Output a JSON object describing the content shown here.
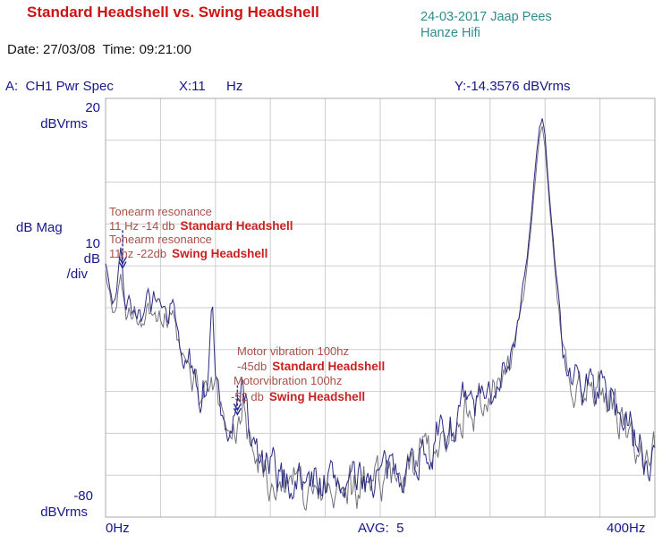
{
  "header": {
    "title": "Standard Headshell vs. Swing Headshell",
    "credit_line1": "24-03-2017 Jaap Pees",
    "credit_line2": "Hanze Hifi",
    "date_time": "Date: 27/03/08  Time: 09:21:00",
    "channel_label": "A:  CH1 Pwr Spec",
    "marker_x_value": "X:11",
    "marker_x_unit": "Hz",
    "marker_y_value": "Y:-14.3576 dBVrms"
  },
  "y_axis": {
    "top_value": "20",
    "top_unit": "dBVrms",
    "mag_label": "dB Mag",
    "div_value": "10",
    "div_unit": "dB",
    "div_suffix": "/div",
    "bottom_value": "-80",
    "bottom_unit": "dBVrms"
  },
  "x_axis": {
    "left_label": "0Hz",
    "avg_label": "AVG:  5",
    "right_label": "400Hz"
  },
  "annotations": {
    "tonearm": {
      "line1": "Tonearm resonance",
      "line2_value": "11 Hz -14 db",
      "line2_name": "Standard Headshell",
      "line3": "Tonearm resonance",
      "line4_value": "11hz -22db",
      "line4_name": "Swing Headshell"
    },
    "motor": {
      "line1": "Motor vibration 100hz",
      "line2_value": "-45db",
      "line2_name": "Standard Headshell",
      "line3": "Motorvibration 100hz",
      "line4_value": "-52 db",
      "line4_name": "Swing Headshell"
    }
  },
  "colors": {
    "title": "#cc1414",
    "credit": "#2e8c8c",
    "axis_text": "#17178c",
    "annotation_text": "#a8524a",
    "annotation_bold": "#c82121"
  },
  "chart_data": {
    "type": "line",
    "title": "Standard Headshell vs. Swing Headshell",
    "xlabel": "Hz",
    "ylabel": "dBVrms",
    "xlim": [
      0,
      400
    ],
    "ylim": [
      -80,
      20
    ],
    "x_divisions": 10,
    "y_divisions": 10,
    "db_per_div": 10,
    "averages": 5,
    "grid": true,
    "grid_color": "#cdcdcd",
    "border_color": "#ababab",
    "marker_color": "#2a2a8c",
    "notable_points": [
      {
        "label": "Tonearm resonance Standard Headshell",
        "hz": 11,
        "db": -14.3576
      },
      {
        "label": "Tonearm resonance Swing Headshell",
        "hz": 11,
        "db": -22
      },
      {
        "label": "Motor vibration Standard Headshell",
        "hz": 100,
        "db": -45
      },
      {
        "label": "Motor vibration Swing Headshell",
        "hz": 100,
        "db": -52
      },
      {
        "label": "Large peak",
        "hz": 320,
        "db": 15.5
      }
    ],
    "markers": [
      {
        "hz": 12.4,
        "db_from": -11.5,
        "db_to": -20.5
      },
      {
        "hz": 96.0,
        "db_from": -48.5,
        "db_to": -55.5
      }
    ],
    "series": [
      {
        "name": "Standard Headshell",
        "color": "#2b2b80",
        "seed": 7,
        "noise_db": 4.2,
        "keypoints": [
          [
            0,
            -19
          ],
          [
            2,
            -23
          ],
          [
            4,
            -27
          ],
          [
            6,
            -29
          ],
          [
            8,
            -25
          ],
          [
            10,
            -18
          ],
          [
            11,
            -15
          ],
          [
            12,
            -18
          ],
          [
            13,
            -25
          ],
          [
            15,
            -30
          ],
          [
            17,
            -28
          ],
          [
            19,
            -31
          ],
          [
            21,
            -29
          ],
          [
            23,
            -32
          ],
          [
            25,
            -30
          ],
          [
            27,
            -33
          ],
          [
            29,
            -28
          ],
          [
            31,
            -26
          ],
          [
            33,
            -30
          ],
          [
            35,
            -28
          ],
          [
            37,
            -31
          ],
          [
            39,
            -29
          ],
          [
            41,
            -32
          ],
          [
            43,
            -30
          ],
          [
            45,
            -33
          ],
          [
            47,
            -30
          ],
          [
            49,
            -29
          ],
          [
            51,
            -33
          ],
          [
            53,
            -37
          ],
          [
            55,
            -40
          ],
          [
            57,
            -42
          ],
          [
            59,
            -45
          ],
          [
            61,
            -43
          ],
          [
            63,
            -46
          ],
          [
            65,
            -44
          ],
          [
            67,
            -48
          ],
          [
            69,
            -50
          ],
          [
            71,
            -47
          ],
          [
            73,
            -50
          ],
          [
            75,
            -46
          ],
          [
            77,
            -33
          ],
          [
            78,
            -31
          ],
          [
            79,
            -40
          ],
          [
            81,
            -48
          ],
          [
            83,
            -52
          ],
          [
            85,
            -55
          ],
          [
            87,
            -57
          ],
          [
            89,
            -60
          ],
          [
            91,
            -62
          ],
          [
            93,
            -60
          ],
          [
            95,
            -57
          ],
          [
            97,
            -52
          ],
          [
            99,
            -47
          ],
          [
            100,
            -46
          ],
          [
            101,
            -49
          ],
          [
            103,
            -56
          ],
          [
            105,
            -60
          ],
          [
            107,
            -63
          ],
          [
            110,
            -65
          ],
          [
            113,
            -67
          ],
          [
            116,
            -68
          ],
          [
            120,
            -69
          ],
          [
            125,
            -70
          ],
          [
            130,
            -71
          ],
          [
            136,
            -72
          ],
          [
            142,
            -71
          ],
          [
            148,
            -72
          ],
          [
            154,
            -70
          ],
          [
            160,
            -72
          ],
          [
            166,
            -71
          ],
          [
            172,
            -72
          ],
          [
            178,
            -71
          ],
          [
            184,
            -72
          ],
          [
            190,
            -70
          ],
          [
            196,
            -71
          ],
          [
            202,
            -69
          ],
          [
            208,
            -70
          ],
          [
            214,
            -68
          ],
          [
            220,
            -67
          ],
          [
            226,
            -66
          ],
          [
            232,
            -64
          ],
          [
            238,
            -63
          ],
          [
            244,
            -61
          ],
          [
            250,
            -59
          ],
          [
            255,
            -57
          ],
          [
            260,
            -54
          ],
          [
            264,
            -52
          ],
          [
            268,
            -55
          ],
          [
            272,
            -51
          ],
          [
            276,
            -54
          ],
          [
            280,
            -50
          ],
          [
            284,
            -48
          ],
          [
            288,
            -45
          ],
          [
            292,
            -43
          ],
          [
            296,
            -40
          ],
          [
            300,
            -34
          ],
          [
            304,
            -26
          ],
          [
            307,
            -18
          ],
          [
            310,
            -8
          ],
          [
            313,
            4
          ],
          [
            316,
            13
          ],
          [
            318,
            15.5
          ],
          [
            320,
            11
          ],
          [
            322,
            2
          ],
          [
            325,
            -10
          ],
          [
            328,
            -22
          ],
          [
            331,
            -33
          ],
          [
            334,
            -41
          ],
          [
            337,
            -46
          ],
          [
            340,
            -49
          ],
          [
            344,
            -46
          ],
          [
            348,
            -50
          ],
          [
            352,
            -45
          ],
          [
            356,
            -49
          ],
          [
            360,
            -47
          ],
          [
            364,
            -52
          ],
          [
            368,
            -49
          ],
          [
            372,
            -53
          ],
          [
            376,
            -56
          ],
          [
            380,
            -58
          ],
          [
            384,
            -61
          ],
          [
            388,
            -63
          ],
          [
            392,
            -66
          ],
          [
            395,
            -68
          ],
          [
            397,
            -66
          ],
          [
            399,
            -62
          ]
        ]
      },
      {
        "name": "Swing Headshell",
        "color": "#72727e",
        "seed": 21,
        "noise_db": 4.2,
        "keypoints": [
          [
            0,
            -21
          ],
          [
            2,
            -25
          ],
          [
            4,
            -29
          ],
          [
            6,
            -31
          ],
          [
            8,
            -28
          ],
          [
            10,
            -24
          ],
          [
            11,
            -22
          ],
          [
            12,
            -24
          ],
          [
            13,
            -28
          ],
          [
            15,
            -32
          ],
          [
            17,
            -30
          ],
          [
            19,
            -33
          ],
          [
            21,
            -31
          ],
          [
            23,
            -34
          ],
          [
            25,
            -32
          ],
          [
            27,
            -34
          ],
          [
            29,
            -30
          ],
          [
            31,
            -28
          ],
          [
            33,
            -32
          ],
          [
            35,
            -30
          ],
          [
            37,
            -33
          ],
          [
            39,
            -31
          ],
          [
            41,
            -34
          ],
          [
            43,
            -32
          ],
          [
            45,
            -34
          ],
          [
            47,
            -32
          ],
          [
            49,
            -31
          ],
          [
            51,
            -35
          ],
          [
            53,
            -39
          ],
          [
            55,
            -42
          ],
          [
            57,
            -44
          ],
          [
            59,
            -46
          ],
          [
            61,
            -45
          ],
          [
            63,
            -48
          ],
          [
            65,
            -46
          ],
          [
            67,
            -50
          ],
          [
            69,
            -52
          ],
          [
            71,
            -49
          ],
          [
            73,
            -52
          ],
          [
            75,
            -50
          ],
          [
            77,
            -46
          ],
          [
            79,
            -48
          ],
          [
            81,
            -51
          ],
          [
            83,
            -54
          ],
          [
            85,
            -57
          ],
          [
            87,
            -59
          ],
          [
            89,
            -62
          ],
          [
            91,
            -63
          ],
          [
            93,
            -61
          ],
          [
            95,
            -59
          ],
          [
            97,
            -56
          ],
          [
            99,
            -54
          ],
          [
            100,
            -53
          ],
          [
            101,
            -55
          ],
          [
            103,
            -59
          ],
          [
            105,
            -62
          ],
          [
            107,
            -64
          ],
          [
            110,
            -66
          ],
          [
            113,
            -68
          ],
          [
            116,
            -69
          ],
          [
            120,
            -70
          ],
          [
            125,
            -71
          ],
          [
            130,
            -72
          ],
          [
            136,
            -73
          ],
          [
            142,
            -72
          ],
          [
            148,
            -73
          ],
          [
            154,
            -71
          ],
          [
            160,
            -73
          ],
          [
            166,
            -72
          ],
          [
            172,
            -73
          ],
          [
            178,
            -72
          ],
          [
            184,
            -73
          ],
          [
            190,
            -71
          ],
          [
            196,
            -72
          ],
          [
            202,
            -70
          ],
          [
            208,
            -71
          ],
          [
            214,
            -69
          ],
          [
            220,
            -68
          ],
          [
            226,
            -67
          ],
          [
            232,
            -65
          ],
          [
            238,
            -64
          ],
          [
            244,
            -62
          ],
          [
            250,
            -60
          ],
          [
            255,
            -58
          ],
          [
            260,
            -56
          ],
          [
            264,
            -54
          ],
          [
            268,
            -56
          ],
          [
            272,
            -53
          ],
          [
            276,
            -55
          ],
          [
            280,
            -52
          ],
          [
            284,
            -50
          ],
          [
            288,
            -47
          ],
          [
            292,
            -45
          ],
          [
            296,
            -42
          ],
          [
            300,
            -36
          ],
          [
            304,
            -28
          ],
          [
            307,
            -20
          ],
          [
            310,
            -10
          ],
          [
            313,
            1
          ],
          [
            316,
            11
          ],
          [
            318,
            13.5
          ],
          [
            320,
            9
          ],
          [
            322,
            0
          ],
          [
            325,
            -12
          ],
          [
            328,
            -24
          ],
          [
            331,
            -35
          ],
          [
            334,
            -43
          ],
          [
            337,
            -48
          ],
          [
            340,
            -51
          ],
          [
            344,
            -48
          ],
          [
            348,
            -52
          ],
          [
            352,
            -47
          ],
          [
            356,
            -51
          ],
          [
            360,
            -49
          ],
          [
            364,
            -54
          ],
          [
            368,
            -51
          ],
          [
            372,
            -55
          ],
          [
            376,
            -58
          ],
          [
            380,
            -60
          ],
          [
            384,
            -63
          ],
          [
            388,
            -65
          ],
          [
            392,
            -68
          ],
          [
            395,
            -69
          ],
          [
            397,
            -67
          ],
          [
            399,
            -63
          ]
        ]
      }
    ]
  }
}
